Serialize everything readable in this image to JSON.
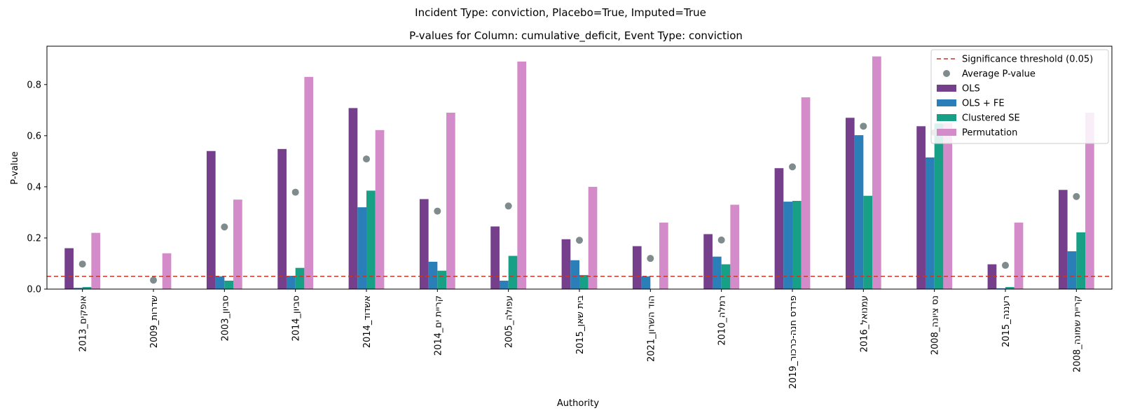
{
  "suptitle": "Incident Type: conviction, Placebo=True, Imputed=True",
  "chart_data": {
    "type": "bar",
    "title": "P-values for Column: cumulative_deficit, Event Type: conviction",
    "xlabel": "Authority",
    "ylabel": "P-value",
    "ylim": [
      0,
      0.95
    ],
    "yticks": [
      0.0,
      0.2,
      0.4,
      0.6,
      0.8
    ],
    "ytick_labels": [
      "0.0",
      "0.2",
      "0.4",
      "0.6",
      "0.8"
    ],
    "categories": [
      "אופקים_2013",
      "שדרות_2009",
      "סביון_2003",
      "סביון_2014",
      "אשדוד_2014",
      "קריית ים_2014",
      "עפולה_2005",
      "בית שאן_2015",
      "הוד השרון_2021",
      "רמלה_2010",
      "פרדס חנה-כרכור_2019",
      "עמנואל_2016",
      "נס ציונה_2008",
      "רעננה_2015",
      "קריית שמונה_2008"
    ],
    "series": [
      {
        "name": "OLS",
        "color": "#763f8c",
        "values": [
          0.16,
          0.0,
          0.54,
          0.548,
          0.708,
          0.352,
          0.245,
          0.195,
          0.168,
          0.215,
          0.473,
          0.67,
          0.637,
          0.097,
          0.388
        ]
      },
      {
        "name": "OLS + FE",
        "color": "#2a7fb8",
        "values": [
          0.005,
          0.0,
          0.05,
          0.052,
          0.32,
          0.107,
          0.033,
          0.113,
          0.05,
          0.127,
          0.342,
          0.602,
          0.515,
          0.003,
          0.148
        ]
      },
      {
        "name": "Clustered SE",
        "color": "#18a087",
        "values": [
          0.008,
          0.0,
          0.033,
          0.083,
          0.385,
          0.072,
          0.13,
          0.055,
          0.0,
          0.097,
          0.345,
          0.365,
          0.648,
          0.008,
          0.222
        ]
      },
      {
        "name": "Permutation",
        "color": "#d48bca",
        "values": [
          0.22,
          0.14,
          0.35,
          0.83,
          0.622,
          0.69,
          0.89,
          0.4,
          0.26,
          0.33,
          0.75,
          0.91,
          0.65,
          0.26,
          0.69
        ]
      }
    ],
    "average": {
      "name": "Average P-value",
      "color": "#7f8c8d",
      "values": [
        0.098,
        0.035,
        0.243,
        0.379,
        0.509,
        0.305,
        0.325,
        0.191,
        0.12,
        0.192,
        0.478,
        0.637,
        0.612,
        0.093,
        0.362
      ]
    },
    "threshold": {
      "name": "Significance threshold (0.05)",
      "value": 0.05,
      "color": "#c0392b"
    },
    "legend_position": "top-right",
    "grid": false
  }
}
